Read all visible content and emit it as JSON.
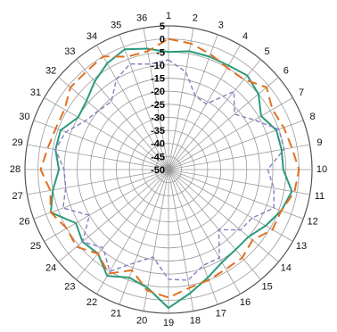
{
  "chart_data": {
    "type": "radar",
    "title": "",
    "spoke_labels": [
      "1",
      "2",
      "3",
      "4",
      "5",
      "6",
      "7",
      "8",
      "9",
      "10",
      "11",
      "12",
      "13",
      "14",
      "15",
      "16",
      "17",
      "18",
      "19",
      "20",
      "21",
      "22",
      "23",
      "24",
      "25",
      "26",
      "27",
      "28",
      "29",
      "30",
      "31",
      "32",
      "33",
      "34",
      "35",
      "36"
    ],
    "radial_axis": {
      "min": -50,
      "max": 5,
      "ticks": [
        5,
        0,
        -5,
        -10,
        -15,
        -20,
        -25,
        -30,
        -35,
        -40,
        -45,
        -50
      ],
      "tick_labels": [
        "5",
        "0",
        "-5",
        "-10",
        "-15",
        "-20",
        "-25",
        "-30",
        "-35",
        "-40",
        "-45",
        "-50"
      ],
      "grid": true
    },
    "legend": "none",
    "series": [
      {
        "style": "solid",
        "color": "#2a9a7c",
        "values": [
          -5,
          -4,
          -4,
          -4,
          -3,
          -5,
          -9,
          -6,
          -6,
          -6,
          -2,
          -4,
          -7,
          -10,
          -10,
          -9,
          -6,
          -2,
          3,
          -4,
          -6,
          -3,
          -8,
          -7,
          -9,
          -2,
          -5,
          -8,
          -6,
          -6,
          -10,
          -9,
          -6,
          -3,
          -1,
          -3
        ]
      },
      {
        "style": "dashed",
        "color": "#e07020",
        "values": [
          0,
          -1,
          -3,
          -5,
          -5,
          -1,
          -4,
          -3,
          -2,
          0,
          -1,
          -4,
          -4,
          -8,
          -6,
          -6,
          -5,
          -4,
          -1,
          -3,
          -9,
          -4,
          -8,
          -4,
          -5,
          -2,
          -4,
          -1,
          -3,
          -4,
          -4,
          -1,
          -1,
          0,
          -4,
          -4
        ]
      },
      {
        "style": "dashed",
        "color": "#8a7cc0",
        "values": [
          -8,
          -12,
          -20,
          -21,
          -11,
          -17,
          -12,
          -5,
          -5,
          -12,
          -9,
          -7,
          -13,
          -14,
          -20,
          -11,
          -11,
          -7,
          -8,
          -16,
          -12,
          -5,
          -11,
          -7,
          -15,
          -7,
          -10,
          -10,
          -6,
          -8,
          -13,
          -15,
          -16,
          -10,
          -7,
          -9
        ]
      }
    ]
  }
}
